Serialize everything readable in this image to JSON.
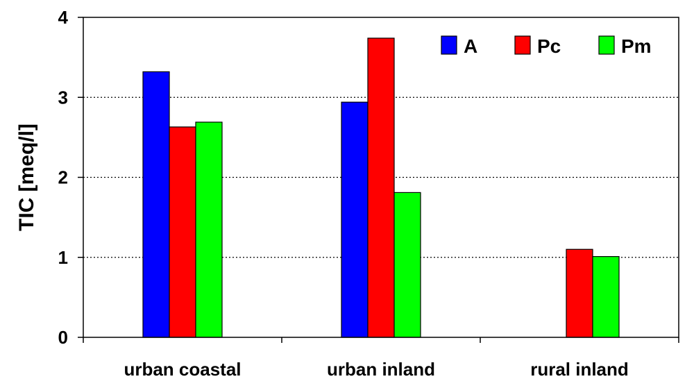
{
  "chart_data": {
    "type": "bar",
    "title": "",
    "xlabel": "",
    "ylabel": "TIC [meq/l]",
    "ylim": [
      0,
      4
    ],
    "yticks": [
      0,
      1,
      2,
      3,
      4
    ],
    "ytick_labels": [
      "0",
      "1",
      "2",
      "3",
      "4"
    ],
    "grid": "horizontal dotted",
    "legend_position": "top-right",
    "categories": [
      "urban coastal",
      "urban inland",
      "rural inland"
    ],
    "series": [
      {
        "name": "A",
        "color": "#0000ff",
        "values": [
          3.32,
          2.94,
          null
        ]
      },
      {
        "name": "Pc",
        "color": "#ff0000",
        "values": [
          2.63,
          3.74,
          1.1
        ]
      },
      {
        "name": "Pm",
        "color": "#00ff00",
        "values": [
          2.69,
          1.81,
          1.01
        ]
      }
    ]
  }
}
